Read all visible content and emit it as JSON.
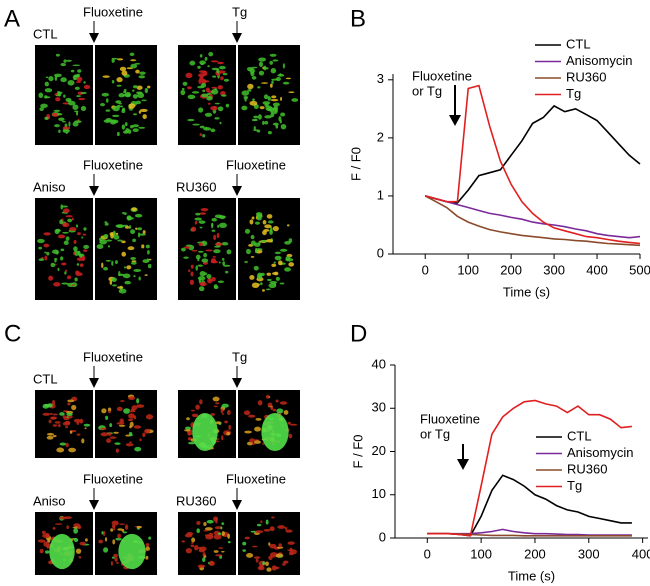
{
  "image_panels": [
    {
      "panel": "A",
      "pairs": [
        {
          "condition": "CTL",
          "treatment": "Fluoxetine"
        },
        {
          "treatment": "Tg"
        },
        {
          "condition": "Aniso",
          "treatment": "Fluoxetine"
        },
        {
          "condition": "RU360",
          "treatment": "Fluoxetine"
        }
      ]
    },
    {
      "panel": "C",
      "pairs": [
        {
          "condition": "CTL",
          "treatment": "Fluoxetine"
        },
        {
          "treatment": "Tg"
        },
        {
          "condition": "Aniso",
          "treatment": "Fluoxetine"
        },
        {
          "condition": "RU360",
          "treatment": "Fluoxetine"
        }
      ]
    }
  ],
  "chart_data": [
    {
      "type": "line",
      "panel": "B",
      "xlabel": "Time (s)",
      "ylabel": "F / F0",
      "x": [
        0,
        25,
        50,
        75,
        100,
        125,
        150,
        175,
        200,
        225,
        250,
        275,
        300,
        325,
        350,
        375,
        400,
        425,
        450,
        475,
        500
      ],
      "series": [
        {
          "name": "CTL",
          "color": "#000000",
          "values": [
            1,
            0.95,
            0.9,
            0.88,
            1.1,
            1.35,
            1.4,
            1.45,
            1.7,
            1.95,
            2.25,
            2.35,
            2.55,
            2.45,
            2.5,
            2.4,
            2.3,
            2.1,
            1.9,
            1.7,
            1.55
          ]
        },
        {
          "name": "Anisomycin",
          "color": "#7b2a9a",
          "values": [
            1,
            0.95,
            0.9,
            0.85,
            0.8,
            0.75,
            0.7,
            0.67,
            0.63,
            0.6,
            0.55,
            0.52,
            0.5,
            0.47,
            0.43,
            0.4,
            0.35,
            0.32,
            0.3,
            0.28,
            0.3
          ]
        },
        {
          "name": "RU360",
          "color": "#8b4a2b",
          "values": [
            1,
            0.9,
            0.8,
            0.65,
            0.55,
            0.48,
            0.42,
            0.38,
            0.35,
            0.32,
            0.3,
            0.28,
            0.26,
            0.25,
            0.23,
            0.22,
            0.2,
            0.18,
            0.17,
            0.16,
            0.15
          ]
        },
        {
          "name": "Tg",
          "color": "#e02020",
          "values": [
            1,
            0.95,
            0.9,
            0.9,
            2.85,
            2.9,
            2.2,
            1.6,
            1.2,
            0.9,
            0.7,
            0.55,
            0.45,
            0.4,
            0.35,
            0.3,
            0.28,
            0.25,
            0.22,
            0.2,
            0.18
          ]
        }
      ],
      "xlim": [
        -75,
        500
      ],
      "ylim": [
        0,
        3.1
      ],
      "xticks": [
        0,
        100,
        200,
        300,
        400,
        500
      ],
      "yticks": [
        0,
        1,
        2,
        3
      ],
      "annotation": {
        "lines": [
          {
            "text": "Fluoxetine",
            "color": "#000000"
          },
          {
            "text": "or Tg",
            "color": "#e02020"
          }
        ]
      }
    },
    {
      "type": "line",
      "panel": "D",
      "xlabel": "Time (s)",
      "ylabel": "F / F0",
      "x": [
        0,
        20,
        40,
        60,
        80,
        100,
        120,
        140,
        160,
        180,
        200,
        220,
        240,
        260,
        280,
        300,
        320,
        340,
        360,
        380
      ],
      "series": [
        {
          "name": "CTL",
          "color": "#000000",
          "values": [
            1,
            1,
            1,
            0.8,
            0.5,
            5,
            11,
            14.5,
            13.5,
            12,
            10,
            9,
            7.5,
            6.5,
            6,
            5,
            4.5,
            4,
            3.5,
            3.5
          ]
        },
        {
          "name": "Anisomycin",
          "color": "#7b2a9a",
          "values": [
            1,
            1,
            1,
            1,
            1,
            1.2,
            1.5,
            2,
            1.5,
            1.2,
            1,
            1,
            0.9,
            0.8,
            0.8,
            0.7,
            0.7,
            0.7,
            0.7,
            0.7
          ]
        },
        {
          "name": "RU360",
          "color": "#8b4a2b",
          "values": [
            1,
            1,
            1,
            0.9,
            0.8,
            0.7,
            0.6,
            0.6,
            0.6,
            0.5,
            0.5,
            0.5,
            0.5,
            0.5,
            0.5,
            0.5,
            0.5,
            0.5,
            0.5,
            0.5
          ]
        },
        {
          "name": "Tg",
          "color": "#e02020",
          "values": [
            1,
            1,
            1,
            0.8,
            0.5,
            12,
            24,
            28,
            30,
            31.5,
            31.8,
            31,
            30.5,
            29,
            30.5,
            28.5,
            28.5,
            27.5,
            25.5,
            25.8
          ]
        }
      ],
      "xlim": [
        -60,
        410
      ],
      "ylim": [
        0,
        40
      ],
      "xticks": [
        0,
        100,
        200,
        300,
        400
      ],
      "yticks": [
        0,
        10,
        20,
        30,
        40
      ],
      "annotation": {
        "lines": [
          {
            "text": "Fluoxetine",
            "color": "#000000"
          },
          {
            "text": "or Tg",
            "color": "#e02020"
          }
        ]
      }
    }
  ]
}
